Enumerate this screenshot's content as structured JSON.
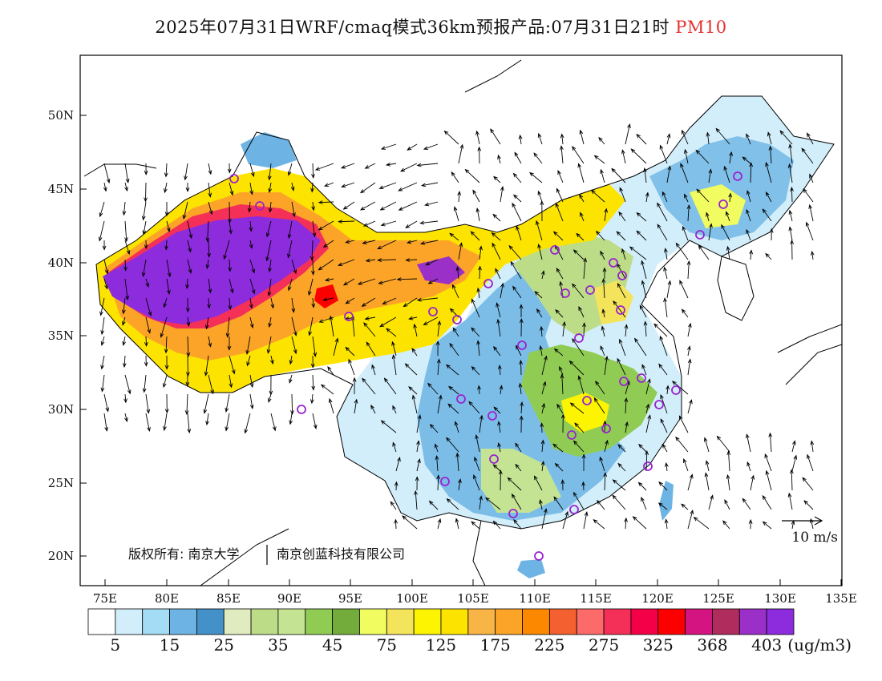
{
  "title": {
    "main": "2025年07月31日WRF/cmaq模式36km预报产品:07月31日21时",
    "pollutant": "PM10",
    "pollutant_color": "#e53030"
  },
  "axes": {
    "x_ticks": [
      "75E",
      "80E",
      "85E",
      "90E",
      "95E",
      "100E",
      "105E",
      "110E",
      "115E",
      "120E",
      "125E",
      "130E",
      "135E"
    ],
    "y_ticks": [
      "50N",
      "45N",
      "40N",
      "35N",
      "30N",
      "25N",
      "20N"
    ]
  },
  "legend": {
    "colors": [
      "#ffffff",
      "#d2eefa",
      "#a3dcf4",
      "#6db4e4",
      "#4490c8",
      "#e0ecc0",
      "#bcdc88",
      "#c4e494",
      "#90cc54",
      "#74ac3c",
      "#f0fc60",
      "#f4e45c",
      "#fcf400",
      "#fce400",
      "#f8b444",
      "#fca428",
      "#fc8800",
      "#f46030",
      "#fc6a6a",
      "#f43058",
      "#f40048",
      "#fc0000",
      "#d41480",
      "#b02c5c",
      "#9a30c8",
      "#8c2cdc"
    ],
    "labels": [
      "5",
      "15",
      "25",
      "35",
      "45",
      "75",
      "125",
      "175",
      "225",
      "275",
      "325",
      "368",
      "403"
    ],
    "unit": "(ug/m3)"
  },
  "wind_scale": {
    "label": "10 m/s"
  },
  "copyright": {
    "left": "版权所有: 南京大学",
    "right": "南京创蓝科技有限公司"
  },
  "icons": [
    "wind-arrow-icon",
    "station-marker-icon"
  ]
}
